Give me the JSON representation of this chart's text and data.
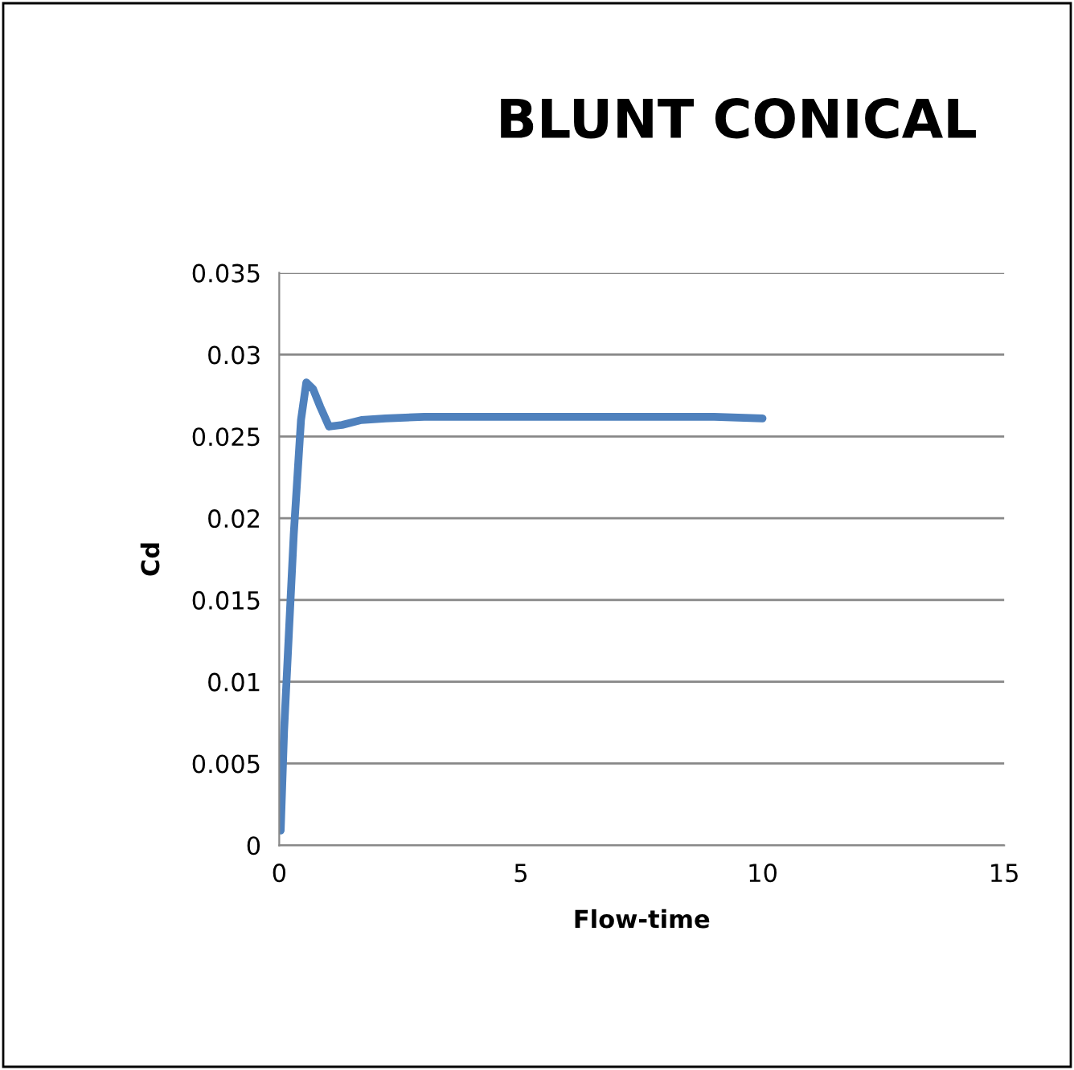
{
  "chart_data": {
    "type": "line",
    "title": "BLUNT CONICAL",
    "xlabel": "Flow-time",
    "ylabel": "Cd",
    "series": [
      {
        "color": "#4f81bd",
        "x": [
          0.03,
          0.1,
          0.2,
          0.3,
          0.45,
          0.56,
          0.7,
          0.85,
          1.03,
          1.3,
          1.7,
          2.2,
          3,
          4,
          5,
          6,
          7,
          8,
          9,
          10
        ],
        "values": [
          0.0009,
          0.007,
          0.013,
          0.019,
          0.026,
          0.0283,
          0.0279,
          0.0268,
          0.0256,
          0.0257,
          0.026,
          0.0261,
          0.0262,
          0.0262,
          0.0262,
          0.0262,
          0.0262,
          0.0262,
          0.0262,
          0.0261
        ]
      }
    ],
    "xlim": [
      0,
      15
    ],
    "xticks": [
      0,
      5,
      10,
      15
    ],
    "ylim": [
      0,
      0.035
    ],
    "yticks": [
      0,
      0.005,
      0.01,
      0.015,
      0.02,
      0.025,
      0.03,
      0.035
    ],
    "grid": "y",
    "legend": false
  }
}
